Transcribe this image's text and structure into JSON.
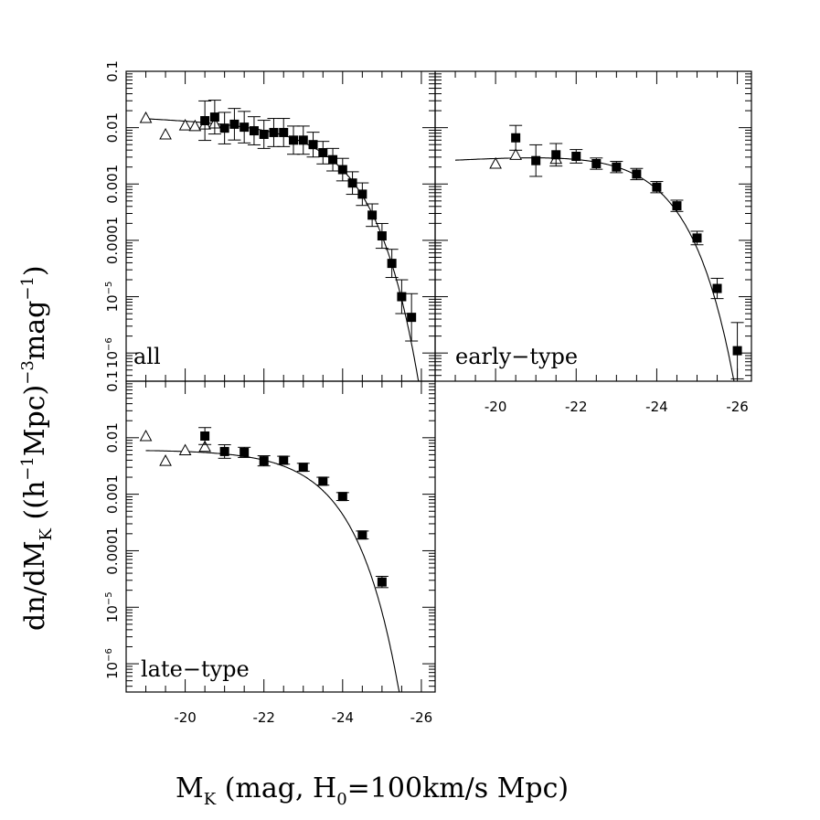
{
  "chart_data": {
    "type": "scatter",
    "title": "",
    "xlabel": "M_K (mag, H_0=100km/s Mpc)",
    "xlabel_parts": {
      "main": "M",
      "sub": "K",
      "rest1": " (mag, H",
      "sub2": "0",
      "rest2": "=100km/s Mpc)"
    },
    "ylabel": "dn/dM_K ((h^-1 Mpc)^-3 mag^-1)",
    "ylabel_parts": {
      "a": "dn/dM",
      "sub": "K",
      "b": " ((h",
      "sup1": "−1",
      "c": "Mpc)",
      "sup2": "−3",
      "d": "mag",
      "sup3": "−1",
      "e": ")"
    },
    "yscale": "log",
    "xlim": [
      -18.5,
      -26.35
    ],
    "ylim_log10": [
      -6.5,
      -1
    ],
    "x_ticks": [
      -20,
      -22,
      -24,
      -26
    ],
    "x_tick_labels": [
      "-20",
      "-22",
      "-24",
      "-26"
    ],
    "y_tick_labels": [
      {
        "value": 0.1,
        "label": "0.1"
      },
      {
        "value": 0.01,
        "label": "0.01"
      },
      {
        "value": 0.001,
        "label": "0.001"
      },
      {
        "value": 0.0001,
        "label": "0.0001"
      },
      {
        "value": 1e-05,
        "label": "10",
        "sup": "−5"
      },
      {
        "value": 1e-06,
        "label": "10",
        "sup": "−6"
      }
    ],
    "panels": [
      {
        "name": "all",
        "label": "all",
        "schechter": {
          "phi_star": 0.0115,
          "M_star": -23.4,
          "alpha": -1.08
        },
        "squares": {
          "x": [
            -20.5,
            -20.75,
            -21.0,
            -21.25,
            -21.5,
            -21.75,
            -22.0,
            -22.25,
            -22.5,
            -22.75,
            -23.0,
            -23.25,
            -23.5,
            -23.75,
            -24.0,
            -24.25,
            -24.5,
            -24.75,
            -25.0,
            -25.25,
            -25.5,
            -25.75
          ],
          "y": [
            0.0133,
            0.0154,
            0.0098,
            0.0115,
            0.0102,
            0.0088,
            0.0076,
            0.0082,
            0.0082,
            0.006,
            0.006,
            0.005,
            0.0036,
            0.0027,
            0.0018,
            0.00104,
            0.00066,
            0.00028,
            0.00012,
            3.9e-05,
            1e-05,
            4.3e-06
          ],
          "err_log10": [
            0.35,
            0.3,
            0.28,
            0.28,
            0.28,
            0.25,
            0.25,
            0.25,
            0.25,
            0.25,
            0.25,
            0.22,
            0.2,
            0.2,
            0.2,
            0.2,
            0.2,
            0.2,
            0.22,
            0.25,
            0.3,
            0.42
          ]
        },
        "triangles": {
          "x": [
            -19.0,
            -19.5,
            -20.0,
            -20.25,
            -20.5,
            -20.75
          ],
          "y": [
            0.0149,
            0.0076,
            0.011,
            0.0107,
            0.0114,
            0.0119
          ]
        }
      },
      {
        "name": "early-type",
        "label": "early−type",
        "schechter": {
          "phi_star": 0.0044,
          "M_star": -23.45,
          "alpha": -0.9
        },
        "squares": {
          "x": [
            -20.5,
            -21.0,
            -21.5,
            -22.0,
            -22.5,
            -23.0,
            -23.5,
            -24.0,
            -24.5,
            -25.0,
            -25.5,
            -26.0
          ],
          "y": [
            0.0066,
            0.0026,
            0.0033,
            0.0031,
            0.0023,
            0.002,
            0.0015,
            0.00088,
            0.00041,
            0.00011,
            1.4e-05,
            1.1e-06
          ],
          "err_log10": [
            0.22,
            0.28,
            0.2,
            0.12,
            0.1,
            0.1,
            0.1,
            0.1,
            0.1,
            0.12,
            0.18,
            0.5
          ]
        },
        "triangles": {
          "x": [
            -20.0,
            -20.5,
            -21.5
          ],
          "y": [
            0.0023,
            0.0033,
            0.0028
          ]
        }
      },
      {
        "name": "late-type",
        "label": "late−type",
        "schechter": {
          "phi_star": 0.0066,
          "M_star": -22.95,
          "alpha": -1.0
        },
        "squares": {
          "x": [
            -20.5,
            -21.0,
            -21.5,
            -22.0,
            -22.5,
            -23.0,
            -23.5,
            -24.0,
            -24.5,
            -25.0
          ],
          "y": [
            0.0107,
            0.0057,
            0.0055,
            0.0039,
            0.004,
            0.003,
            0.0017,
            0.00091,
            0.00019,
            2.8e-05
          ],
          "err_log10": [
            0.15,
            0.12,
            0.09,
            0.09,
            0.07,
            0.07,
            0.07,
            0.07,
            0.07,
            0.1
          ]
        },
        "triangles": {
          "x": [
            -19.0,
            -19.5,
            -20.0,
            -20.5
          ],
          "y": [
            0.0107,
            0.0039,
            0.006,
            0.0069
          ]
        }
      }
    ]
  }
}
